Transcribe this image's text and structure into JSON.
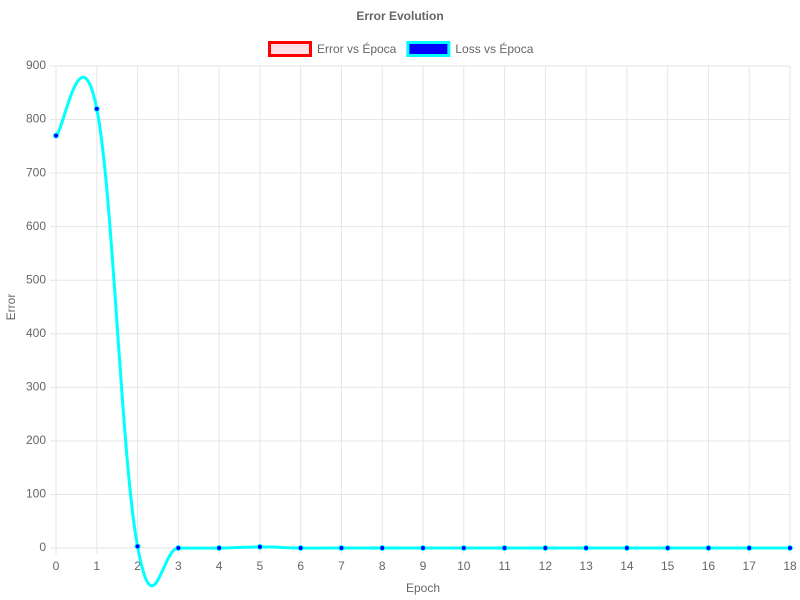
{
  "chart_data": {
    "type": "line",
    "title": "Error Evolution",
    "xlabel": "Epoch",
    "ylabel": "Error",
    "categories": [
      "0",
      "1",
      "2",
      "3",
      "4",
      "5",
      "6",
      "7",
      "8",
      "9",
      "10",
      "11",
      "12",
      "13",
      "14",
      "15",
      "16",
      "17",
      "18"
    ],
    "series": [
      {
        "name": "Error vs Época",
        "color": "#ff0000",
        "fill": "#ffe0e6",
        "values": [
          null,
          null,
          null,
          null,
          null,
          null,
          null,
          null,
          null,
          null,
          null,
          null,
          null,
          null,
          null,
          null,
          null,
          null,
          null
        ]
      },
      {
        "name": "Loss vs Época",
        "color": "#00ffff",
        "fill": "#0000ff",
        "values": [
          770,
          820,
          3,
          0,
          0,
          2,
          0,
          0,
          0,
          0,
          0,
          0,
          0,
          0,
          0,
          0,
          0,
          0,
          0
        ]
      }
    ],
    "ylim": [
      0,
      900
    ],
    "yticks": [
      0,
      100,
      200,
      300,
      400,
      500,
      600,
      700,
      800,
      900
    ],
    "grid": true,
    "legend": "top"
  }
}
